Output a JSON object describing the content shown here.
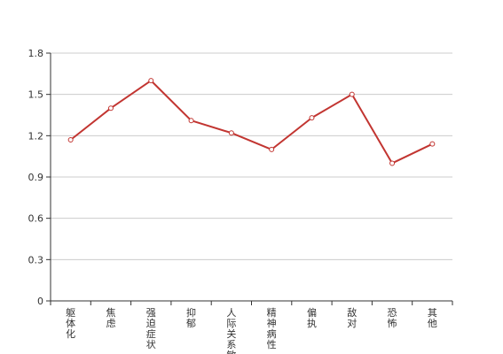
{
  "chart_data": {
    "type": "line",
    "title": "",
    "xlabel": "",
    "ylabel": "",
    "categories": [
      "躯体化",
      "焦虑",
      "强迫症状",
      "抑郁",
      "人际关系敏感",
      "精神病性",
      "偏执",
      "敌对",
      "恐怖",
      "其他"
    ],
    "series": [
      {
        "values": [
          1.17,
          1.4,
          1.6,
          1.31,
          1.22,
          1.1,
          1.33,
          1.5,
          1.0,
          1.14
        ]
      }
    ],
    "ylim": [
      0,
      1.8
    ],
    "yticks": [
      "0",
      "0.3",
      "0.6",
      "0.9",
      "1.2",
      "1.5",
      "1.8"
    ],
    "grid": true,
    "legend": "none",
    "colors": {
      "line": "#c23531",
      "grid": "#cccccc",
      "axis": "#333333",
      "point_fill": "#ffffff"
    }
  }
}
